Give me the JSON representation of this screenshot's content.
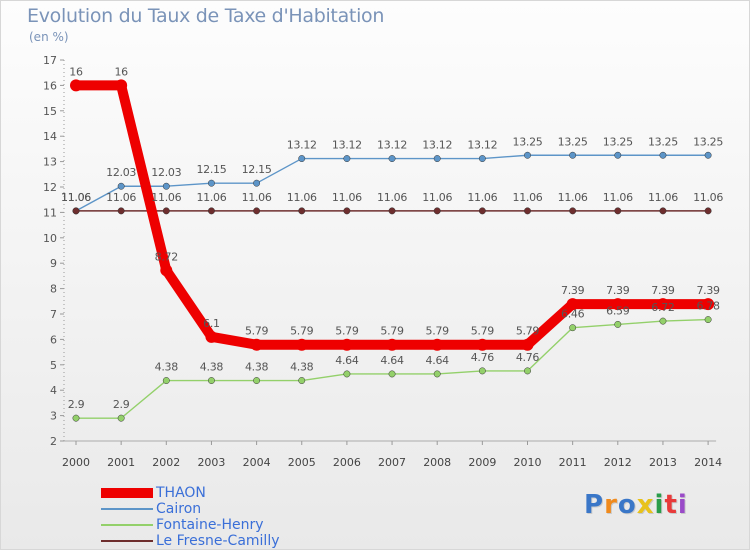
{
  "colors": {
    "THAON": "#ee0000",
    "Cairon": "#5d95c8",
    "Fontaine-Henry": "#93d06a",
    "Le Fresne-Camilly": "#6e2e2e"
  },
  "chart_data": {
    "type": "line",
    "title": "Evolution du Taux de Taxe d'Habitation",
    "subtitle": "(en %)",
    "xlabel": "",
    "ylabel": "",
    "ylim": [
      2,
      17
    ],
    "y_ticks": [
      "2",
      "3",
      "4",
      "5",
      "6",
      "7",
      "8",
      "9",
      "10",
      "11",
      "12",
      "13",
      "14",
      "15",
      "16",
      "17"
    ],
    "grid": false,
    "legend_position": "bottom-left",
    "categories": [
      "2000",
      "2001",
      "2002",
      "2003",
      "2004",
      "2005",
      "2006",
      "2007",
      "2008",
      "2009",
      "2010",
      "2011",
      "2012",
      "2013",
      "2014"
    ],
    "series": [
      {
        "name": "THAON",
        "values": [
          16,
          16,
          8.72,
          6.1,
          5.79,
          5.79,
          5.79,
          5.79,
          5.79,
          5.79,
          5.79,
          7.39,
          7.39,
          7.39,
          7.39
        ],
        "labels": [
          "16",
          "16",
          "8.72",
          "6.1",
          "5.79",
          "5.79",
          "5.79",
          "5.79",
          "5.79",
          "5.79",
          "5.79",
          "7.39",
          "7.39",
          "7.39",
          "7.39"
        ]
      },
      {
        "name": "Cairon",
        "values": [
          11.06,
          12.03,
          12.03,
          12.15,
          12.15,
          13.12,
          13.12,
          13.12,
          13.12,
          13.12,
          13.25,
          13.25,
          13.25,
          13.25,
          13.25
        ],
        "labels": [
          "11.06",
          "12.03",
          "12.03",
          "12.15",
          "12.15",
          "13.12",
          "13.12",
          "13.12",
          "13.12",
          "13.12",
          "13.25",
          "13.25",
          "13.25",
          "13.25",
          "13.25"
        ]
      },
      {
        "name": "Fontaine-Henry",
        "values": [
          2.9,
          2.9,
          4.38,
          4.38,
          4.38,
          4.38,
          4.64,
          4.64,
          4.64,
          4.76,
          4.76,
          6.46,
          6.59,
          6.72,
          6.78
        ],
        "labels": [
          "2.9",
          "2.9",
          "4.38",
          "4.38",
          "4.38",
          "4.38",
          "4.64",
          "4.64",
          "4.64",
          "4.76",
          "4.76",
          "6.46",
          "6.59",
          "6.72",
          "6.78"
        ]
      },
      {
        "name": "Le Fresne-Camilly",
        "values": [
          11.06,
          11.06,
          11.06,
          11.06,
          11.06,
          11.06,
          11.06,
          11.06,
          11.06,
          11.06,
          11.06,
          11.06,
          11.06,
          11.06,
          11.06
        ],
        "labels": [
          "11.06",
          "11.06",
          "11.06",
          "11.06",
          "11.06",
          "11.06",
          "11.06",
          "11.06",
          "11.06",
          "11.06",
          "11.06",
          "11.06",
          "11.06",
          "11.06",
          "11.06"
        ]
      }
    ]
  },
  "brand": {
    "letters": [
      "P",
      "r",
      "o",
      "x",
      "i",
      "t",
      "i"
    ],
    "colors": [
      "#3a77c8",
      "#f08a1c",
      "#3a77c8",
      "#e8c21a",
      "#2a9d4a",
      "#e83a3a",
      "#9a4ac8"
    ]
  }
}
